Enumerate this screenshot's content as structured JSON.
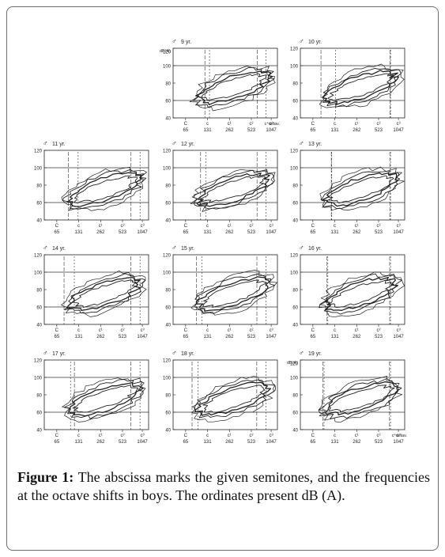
{
  "figure": {
    "y_axis_label": "dB(A)",
    "y_ticks": [
      "120",
      "100",
      "80",
      "60",
      "40"
    ],
    "x_note_labels": [
      "C",
      "c",
      "c¹",
      "c²",
      "c³"
    ],
    "x_freq_labels": [
      "65",
      "131",
      "262",
      "523",
      "1047"
    ],
    "octave_label": "c⁴octav.",
    "male_symbol": "♂",
    "panels": [
      {
        "age": "9 yr.",
        "shows_db_label": true,
        "shows_octave_label": true
      },
      {
        "age": "10 yr.",
        "shows_db_label": false,
        "shows_octave_label": false
      },
      {
        "age": "11 yr.",
        "shows_db_label": false,
        "shows_octave_label": false
      },
      {
        "age": "12 yr.",
        "shows_db_label": false,
        "shows_octave_label": false
      },
      {
        "age": "13 yr.",
        "shows_db_label": false,
        "shows_octave_label": false
      },
      {
        "age": "14 yr.",
        "shows_db_label": false,
        "shows_octave_label": false
      },
      {
        "age": "15 yr.",
        "shows_db_label": false,
        "shows_octave_label": false
      },
      {
        "age": "16 yr.",
        "shows_db_label": false,
        "shows_octave_label": false
      },
      {
        "age": "17 yr.",
        "shows_db_label": false,
        "shows_octave_label": false
      },
      {
        "age": "18 yr.",
        "shows_db_label": false,
        "shows_octave_label": false
      },
      {
        "age": "19 yr.",
        "shows_db_label": true,
        "shows_octave_label": true
      }
    ]
  },
  "caption": {
    "label": "Figure 1:",
    "text": "The abscissa marks the given semitones, and the frequencies at the octave shifts in boys. The ordinates present dB (A)."
  }
}
